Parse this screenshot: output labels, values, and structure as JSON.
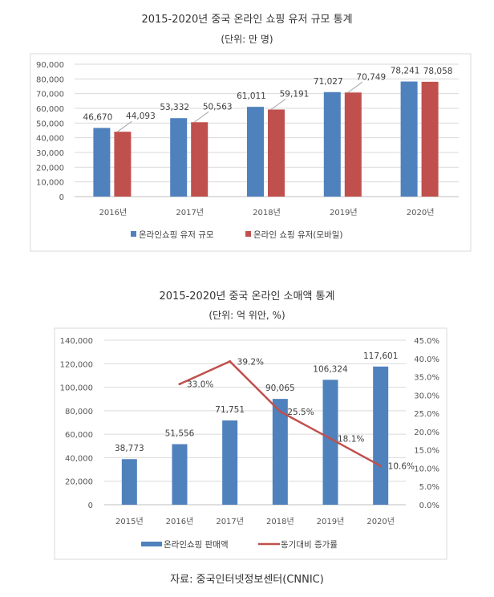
{
  "chart_data": [
    {
      "type": "bar",
      "title": "2015-2020년 중국 온라인 쇼핑 유저 규모 통계",
      "subtitle": "(단위: 만 명)",
      "categories": [
        "2016년",
        "2017년",
        "2018년",
        "2019년",
        "2020년"
      ],
      "series": [
        {
          "name": "온라인쇼핑 유저 규모",
          "color": "#4F81BD",
          "values": [
            46670,
            53332,
            61011,
            71027,
            78241
          ],
          "labels": [
            "46,670",
            "53,332",
            "61,011",
            "71,027",
            "78,241"
          ]
        },
        {
          "name": "온라인 쇼핑 유저(모바일)",
          "color": "#C0504D",
          "values": [
            44093,
            50563,
            59191,
            70749,
            78058
          ],
          "labels": [
            "44,093",
            "50,563",
            "59,191",
            "70,749",
            "78,058"
          ]
        }
      ],
      "ylim": [
        0,
        90000
      ],
      "yticks": [
        "0",
        "10,000",
        "20,000",
        "30,000",
        "40,000",
        "50,000",
        "60,000",
        "70,000",
        "80,000",
        "90,000"
      ],
      "grid": true,
      "legend": "bottom"
    },
    {
      "type": "bar+line",
      "title": "2015-2020년 중국 온라인 소매액 통계",
      "subtitle": "(단위: 억 위안, %)",
      "categories": [
        "2015년",
        "2016년",
        "2017년",
        "2018년",
        "2019년",
        "2020년"
      ],
      "bar_series": {
        "name": "온라인쇼핑 판매액",
        "color": "#4F81BD",
        "values": [
          38773,
          51556,
          71751,
          90065,
          106324,
          117601
        ],
        "labels": [
          "38,773",
          "51,556",
          "71,751",
          "90,065",
          "106,324",
          "117,601"
        ]
      },
      "line_series": {
        "name": "동기대비 증가률",
        "color": "#C0504D",
        "values": [
          null,
          33.0,
          39.2,
          25.5,
          18.1,
          10.6
        ],
        "labels": [
          "",
          "33.0%",
          "39.2%",
          "25.5%",
          "18.1%",
          "10.6%"
        ]
      },
      "ylim": [
        0,
        140000
      ],
      "yticks": [
        "0",
        "20,000",
        "40,000",
        "60,000",
        "80,000",
        "100,000",
        "120,000",
        "140,000"
      ],
      "y2lim": [
        0,
        45
      ],
      "y2ticks": [
        "0.0%",
        "5.0%",
        "10.0%",
        "15.0%",
        "20.0%",
        "25.0%",
        "30.0%",
        "35.0%",
        "40.0%",
        "45.0%"
      ],
      "grid": true,
      "legend": "bottom"
    }
  ],
  "source": "자료: 중국인터넷정보센터(CNNIC)"
}
